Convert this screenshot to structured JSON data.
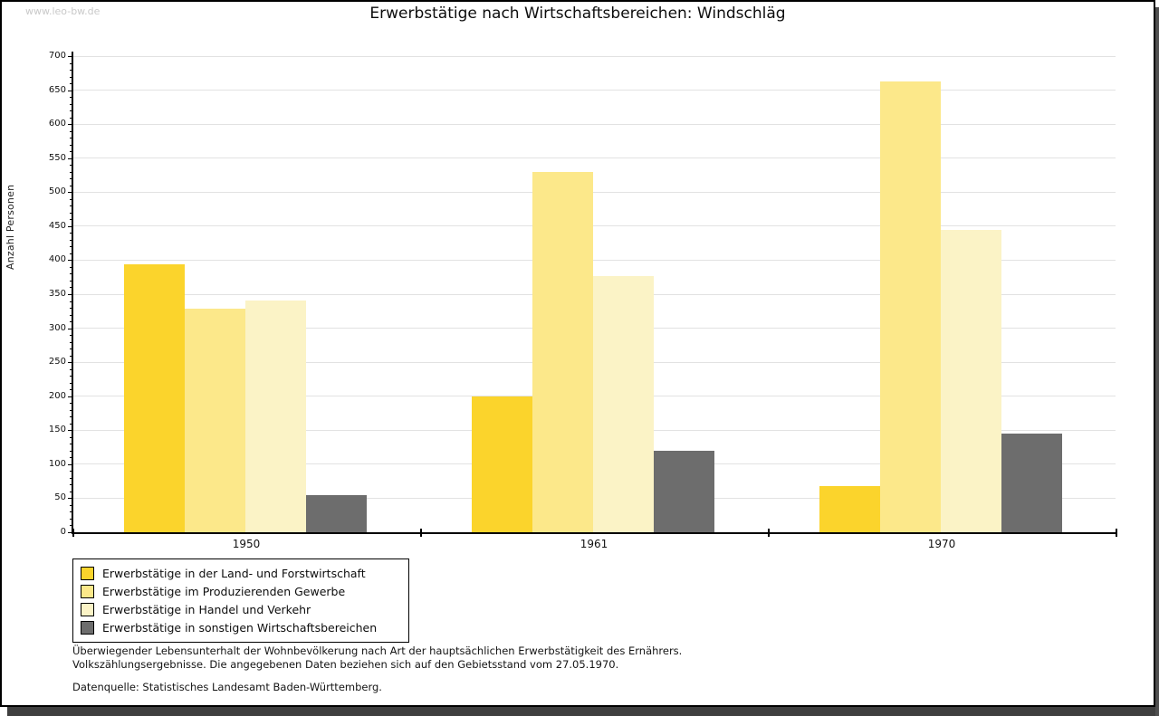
{
  "watermark": "www.leo-bw.de",
  "header": {
    "title": "Erwerbstätige nach Wirtschaftsbereichen: Windschläg"
  },
  "chart_data": {
    "type": "bar",
    "title": "Erwerbstätige nach Wirtschaftsbereichen: Windschläg",
    "xlabel": "",
    "ylabel": "Anzahl Personen",
    "categories": [
      "1950",
      "1961",
      "1970"
    ],
    "series": [
      {
        "name": "Erwerbstätige in der Land- und Forstwirtschaft",
        "color": "#FBD42C",
        "values": [
          394,
          199,
          68
        ]
      },
      {
        "name": "Erwerbstätige im Produzierenden Gewerbe",
        "color": "#FCE88A",
        "values": [
          329,
          530,
          663
        ]
      },
      {
        "name": "Erwerbstätige in Handel und Verkehr",
        "color": "#FBF3C6",
        "values": [
          341,
          376,
          444
        ]
      },
      {
        "name": "Erwerbstätige in sonstigen Wirtschaftsbereichen",
        "color": "#6D6D6D",
        "values": [
          54,
          120,
          145
        ]
      }
    ],
    "ylim": [
      0,
      700
    ],
    "y_ticks": [
      0,
      50,
      100,
      150,
      200,
      250,
      300,
      350,
      400,
      450,
      500,
      550,
      600,
      650,
      700
    ],
    "y_minor_step": 10,
    "grid": true,
    "legend_position": "bottom-left"
  },
  "footnotes": {
    "line1": "Überwiegender Lebensunterhalt der Wohnbevölkerung nach Art der hauptsächlichen Erwerbstätigkeit des Ernährers.",
    "line2": "Volkszählungsergebnisse. Die angegebenen Daten beziehen sich auf den Gebietsstand vom 27.05.1970.",
    "source": "Datenquelle: Statistisches Landesamt Baden-Württemberg."
  }
}
